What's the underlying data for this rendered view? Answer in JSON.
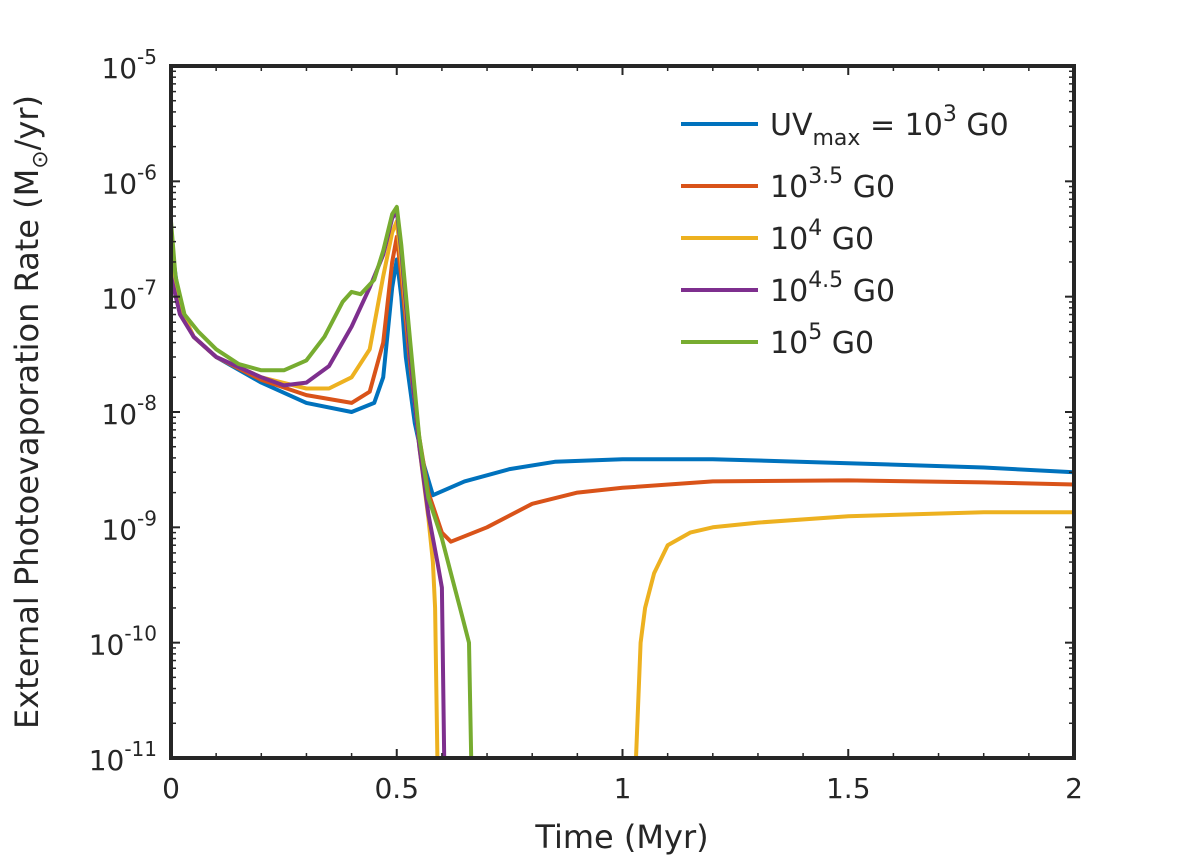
{
  "chart_data": {
    "type": "line",
    "title": "",
    "xlabel": "Time (Myr)",
    "ylabel": {
      "main": "External Photoevaporation Rate (M",
      "subscript": "⊙",
      "unit": "/yr)"
    },
    "xscale": "linear",
    "yscale": "log",
    "xlim": [
      0,
      2
    ],
    "ylim": [
      1e-11,
      1e-05
    ],
    "xticks": [
      {
        "value": 0,
        "label": "0"
      },
      {
        "value": 0.5,
        "label": "0.5"
      },
      {
        "value": 1,
        "label": "1"
      },
      {
        "value": 1.5,
        "label": "1.5"
      },
      {
        "value": 2,
        "label": "2"
      }
    ],
    "yticks": [
      {
        "value": 1e-11,
        "base": "10",
        "exponent": "-11"
      },
      {
        "value": 1e-10,
        "base": "10",
        "exponent": "-10"
      },
      {
        "value": 1e-09,
        "base": "10",
        "exponent": "-9"
      },
      {
        "value": 1e-08,
        "base": "10",
        "exponent": "-8"
      },
      {
        "value": 1e-07,
        "base": "10",
        "exponent": "-7"
      },
      {
        "value": 1e-06,
        "base": "10",
        "exponent": "-6"
      },
      {
        "value": 1e-05,
        "base": "10",
        "exponent": "-5"
      }
    ],
    "grid": false,
    "legend_position": "top-right",
    "series": [
      {
        "name": "UVmax = 10^3 G0",
        "legend": {
          "prefix": "UV",
          "sub": "max",
          "mid": " = 10",
          "sup": "3",
          "suffix": " G0"
        },
        "color": "#0072BD",
        "points": [
          [
            0,
            3e-07
          ],
          [
            0.02,
            8e-08
          ],
          [
            0.05,
            4.5e-08
          ],
          [
            0.1,
            3e-08
          ],
          [
            0.2,
            1.8e-08
          ],
          [
            0.3,
            1.2e-08
          ],
          [
            0.4,
            1e-08
          ],
          [
            0.45,
            1.2e-08
          ],
          [
            0.47,
            2e-08
          ],
          [
            0.49,
            1.2e-07
          ],
          [
            0.5,
            2.1e-07
          ],
          [
            0.51,
            1e-07
          ],
          [
            0.52,
            3e-08
          ],
          [
            0.54,
            8e-09
          ],
          [
            0.56,
            3.5e-09
          ],
          [
            0.58,
            1.9e-09
          ],
          [
            0.65,
            2.5e-09
          ],
          [
            0.75,
            3.2e-09
          ],
          [
            0.85,
            3.7e-09
          ],
          [
            1.0,
            3.9e-09
          ],
          [
            1.2,
            3.9e-09
          ],
          [
            1.5,
            3.6e-09
          ],
          [
            1.8,
            3.3e-09
          ],
          [
            2.0,
            3e-09
          ]
        ]
      },
      {
        "name": "10^3.5 G0",
        "legend": {
          "prefix": "",
          "sub": "",
          "mid": "10",
          "sup": "3.5",
          "suffix": " G0"
        },
        "color": "#D95319",
        "points": [
          [
            0,
            2.8e-07
          ],
          [
            0.02,
            8e-08
          ],
          [
            0.05,
            4.5e-08
          ],
          [
            0.1,
            3e-08
          ],
          [
            0.2,
            1.9e-08
          ],
          [
            0.3,
            1.4e-08
          ],
          [
            0.4,
            1.2e-08
          ],
          [
            0.44,
            1.5e-08
          ],
          [
            0.47,
            4e-08
          ],
          [
            0.49,
            2e-07
          ],
          [
            0.5,
            3.3e-07
          ],
          [
            0.51,
            1.5e-07
          ],
          [
            0.53,
            2.5e-08
          ],
          [
            0.55,
            6e-09
          ],
          [
            0.57,
            2e-09
          ],
          [
            0.6,
            9e-10
          ],
          [
            0.62,
            7.5e-10
          ],
          [
            0.7,
            1e-09
          ],
          [
            0.8,
            1.6e-09
          ],
          [
            0.9,
            2e-09
          ],
          [
            1.0,
            2.2e-09
          ],
          [
            1.2,
            2.5e-09
          ],
          [
            1.5,
            2.55e-09
          ],
          [
            1.8,
            2.45e-09
          ],
          [
            2.0,
            2.35e-09
          ]
        ]
      },
      {
        "name": "10^4 G0",
        "legend": {
          "prefix": "",
          "sub": "",
          "mid": "10",
          "sup": "4",
          "suffix": " G0"
        },
        "color": "#EDB120",
        "points": [
          [
            0,
            2.5e-07
          ],
          [
            0.02,
            8e-08
          ],
          [
            0.05,
            4.5e-08
          ],
          [
            0.1,
            3e-08
          ],
          [
            0.2,
            2e-08
          ],
          [
            0.3,
            1.6e-08
          ],
          [
            0.35,
            1.6e-08
          ],
          [
            0.4,
            2e-08
          ],
          [
            0.44,
            3.5e-08
          ],
          [
            0.47,
            1.5e-07
          ],
          [
            0.49,
            3.6e-07
          ],
          [
            0.5,
            4.5e-07
          ],
          [
            0.51,
            2e-07
          ],
          [
            0.53,
            3e-08
          ],
          [
            0.55,
            5e-09
          ],
          [
            0.57,
            1.2e-09
          ],
          [
            0.58,
            5e-10
          ],
          [
            0.585,
            2e-10
          ],
          [
            0.59,
            1e-11
          ],
          [
            1.03,
            1e-11
          ],
          [
            1.04,
            1e-10
          ],
          [
            1.05,
            2e-10
          ],
          [
            1.07,
            4e-10
          ],
          [
            1.1,
            7e-10
          ],
          [
            1.15,
            9e-10
          ],
          [
            1.2,
            1e-09
          ],
          [
            1.3,
            1.1e-09
          ],
          [
            1.5,
            1.25e-09
          ],
          [
            1.8,
            1.35e-09
          ],
          [
            2.0,
            1.35e-09
          ]
        ]
      },
      {
        "name": "10^4.5 G0",
        "legend": {
          "prefix": "",
          "sub": "",
          "mid": "10",
          "sup": "4.5",
          "suffix": " G0"
        },
        "color": "#7E2F8E",
        "points": [
          [
            0,
            1.5e-07
          ],
          [
            0.02,
            7e-08
          ],
          [
            0.05,
            4.5e-08
          ],
          [
            0.1,
            3e-08
          ],
          [
            0.2,
            2e-08
          ],
          [
            0.25,
            1.7e-08
          ],
          [
            0.3,
            1.8e-08
          ],
          [
            0.35,
            2.5e-08
          ],
          [
            0.4,
            5.5e-08
          ],
          [
            0.44,
            1.2e-07
          ],
          [
            0.47,
            2.3e-07
          ],
          [
            0.49,
            4.8e-07
          ],
          [
            0.5,
            5.5e-07
          ],
          [
            0.51,
            2.5e-07
          ],
          [
            0.53,
            3e-08
          ],
          [
            0.55,
            5e-09
          ],
          [
            0.57,
            1.3e-09
          ],
          [
            0.59,
            5e-10
          ],
          [
            0.6,
            3e-10
          ],
          [
            0.605,
            1e-11
          ]
        ]
      },
      {
        "name": "10^5 G0",
        "legend": {
          "prefix": "",
          "sub": "",
          "mid": "10",
          "sup": "5",
          "suffix": " G0"
        },
        "color": "#77AC30",
        "points": [
          [
            0,
            4.5e-07
          ],
          [
            0.01,
            1.5e-07
          ],
          [
            0.03,
            7e-08
          ],
          [
            0.06,
            5e-08
          ],
          [
            0.1,
            3.5e-08
          ],
          [
            0.15,
            2.6e-08
          ],
          [
            0.2,
            2.3e-08
          ],
          [
            0.25,
            2.3e-08
          ],
          [
            0.3,
            2.8e-08
          ],
          [
            0.34,
            4.5e-08
          ],
          [
            0.38,
            9e-08
          ],
          [
            0.4,
            1.1e-07
          ],
          [
            0.42,
            1.05e-07
          ],
          [
            0.45,
            1.4e-07
          ],
          [
            0.47,
            2.5e-07
          ],
          [
            0.49,
            5.2e-07
          ],
          [
            0.5,
            6e-07
          ],
          [
            0.51,
            2.8e-07
          ],
          [
            0.53,
            4e-08
          ],
          [
            0.55,
            6e-09
          ],
          [
            0.57,
            1.8e-09
          ],
          [
            0.6,
            8e-10
          ],
          [
            0.62,
            4e-10
          ],
          [
            0.64,
            2e-10
          ],
          [
            0.66,
            1e-10
          ],
          [
            0.665,
            1e-11
          ]
        ]
      }
    ]
  }
}
